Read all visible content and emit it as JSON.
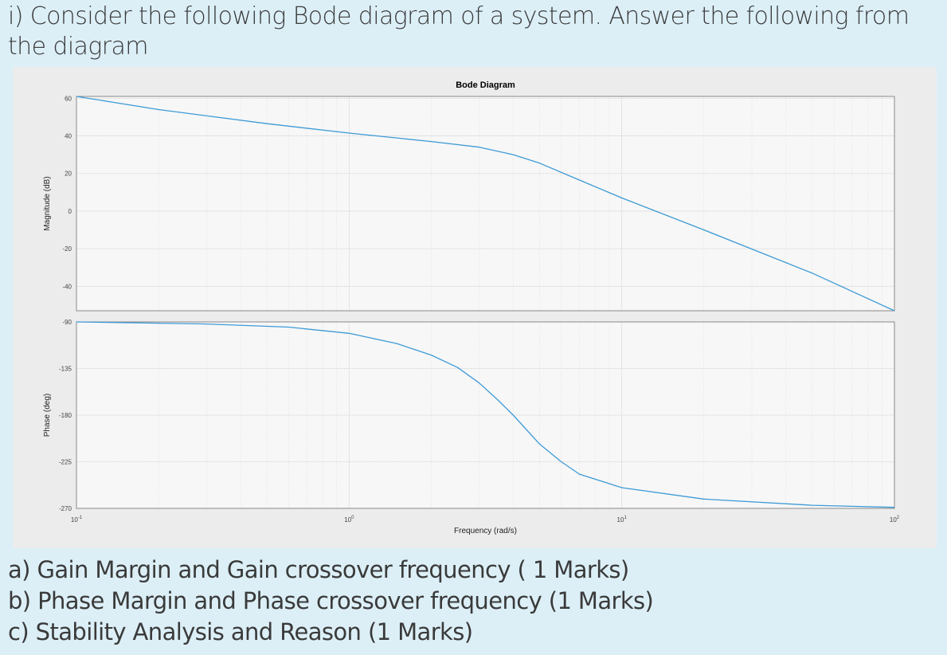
{
  "question": {
    "prompt": "i) Consider the following Bode diagram of a system. Answer the following from the diagram",
    "parts": [
      "a) Gain Margin and Gain crossover frequency ( 1 Marks)",
      "b) Phase Margin and Phase crossover frequency (1 Marks)",
      "c) Stability Analysis and Reason (1 Marks)"
    ]
  },
  "chart_data": {
    "type": "line",
    "title": "Bode Diagram",
    "xlabel": "Frequency  (rad/s)",
    "x_scale": "log",
    "xlim": [
      0.1,
      100
    ],
    "x_ticks": [
      {
        "value": 0.1,
        "base": "10",
        "exp": "-1"
      },
      {
        "value": 1,
        "base": "10",
        "exp": "0"
      },
      {
        "value": 10,
        "base": "10",
        "exp": "1"
      },
      {
        "value": 100,
        "base": "10",
        "exp": "2"
      }
    ],
    "grid": true,
    "line_color": "#3d9ad6",
    "panels": [
      {
        "name": "magnitude",
        "ylabel": "Magnitude (dB)",
        "ylim": [
          -53,
          61
        ],
        "y_ticks": [
          60,
          40,
          20,
          0,
          -20,
          -40
        ],
        "x": [
          0.1,
          0.2,
          0.5,
          1,
          2,
          3,
          4,
          5,
          7,
          10,
          20,
          50,
          100
        ],
        "y": [
          61,
          54,
          46.5,
          41.5,
          37,
          34,
          30,
          25.5,
          16.5,
          7,
          -10,
          -33,
          -53
        ]
      },
      {
        "name": "phase",
        "ylabel": "Phase (deg)",
        "ylim": [
          -270,
          -90
        ],
        "y_ticks": [
          -90,
          -135,
          -180,
          -225,
          -270
        ],
        "x": [
          0.1,
          0.3,
          0.6,
          1,
          1.5,
          2,
          2.5,
          3,
          3.5,
          4,
          5,
          6,
          7,
          10,
          20,
          50,
          100
        ],
        "y": [
          -90,
          -92,
          -95,
          -101,
          -111,
          -122,
          -134,
          -149,
          -165,
          -180,
          -208,
          -225,
          -237,
          -250,
          -261,
          -267,
          -269
        ]
      }
    ]
  }
}
